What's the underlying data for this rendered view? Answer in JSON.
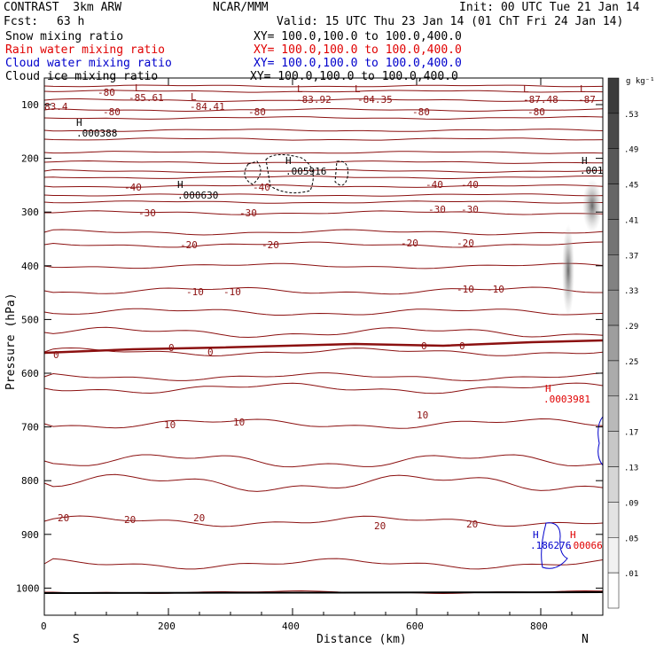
{
  "header": {
    "model": "CONTRAST  3km ARW",
    "center": "NCAR/MMM",
    "init": "Init: 00 UTC Tue 21 Jan 14",
    "fcst_label": "Fcst:",
    "fcst_value": "63 h",
    "valid": "Valid: 15 UTC Thu 23 Jan 14 (01 ChT Fri 24 Jan 14)",
    "fields": [
      {
        "name": "Snow mixing ratio",
        "xy": "XY= 100.0,100.0 to 100.0,400.0",
        "color": "#000000"
      },
      {
        "name": "Rain water mixing ratio",
        "xy": "XY= 100.0,100.0 to 100.0,400.0",
        "color": "#e00000"
      },
      {
        "name": "Cloud water mixing ratio",
        "xy": "XY= 100.0,100.0 to 100.0,400.0",
        "color": "#0000cc"
      },
      {
        "name": "Cloud ice mixing ratio",
        "xy": "XY= 100.0,100.0 to 100.0,400.0",
        "color": "#000000"
      }
    ]
  },
  "chart_data": {
    "type": "contour",
    "xlabel": "Distance (km)",
    "ylabel": "Pressure (hPa)",
    "xlim": [
      0,
      900
    ],
    "ylim": [
      1050,
      80
    ],
    "x_ticks": [
      "0",
      "200",
      "400",
      "600",
      "800"
    ],
    "x_tick_values": [
      0,
      200,
      400,
      600,
      800
    ],
    "y_ticks": [
      "100",
      "200",
      "300",
      "400",
      "500",
      "600",
      "700",
      "800",
      "900",
      "1000"
    ],
    "y_tick_values": [
      100,
      200,
      300,
      400,
      500,
      600,
      700,
      800,
      900,
      1000
    ],
    "endpoints": {
      "left": "S",
      "right": "N"
    },
    "colorbar": {
      "unit": "g kg⁻¹",
      "labels": [
        ".53",
        ".49",
        ".45",
        ".41",
        ".37",
        ".33",
        ".29",
        ".25",
        ".21",
        ".17",
        ".13",
        ".09",
        ".05",
        ".01"
      ]
    },
    "temperature_contours": [
      {
        "value": -80,
        "label": "-80"
      },
      {
        "value": -40,
        "label": "-40"
      },
      {
        "value": -30,
        "label": "-30"
      },
      {
        "value": -20,
        "label": "-20"
      },
      {
        "value": -10,
        "label": "-10"
      },
      {
        "value": 0,
        "label": "0"
      },
      {
        "value": 10,
        "label": "10"
      },
      {
        "value": 20,
        "label": "20"
      }
    ],
    "minima_labels": [
      "-85.61",
      "-84.41",
      "-83.92",
      "-84.35",
      "-87.48",
      "-87",
      "83.4"
    ],
    "maxima": [
      {
        "label": "H",
        "value": ".000388",
        "color": "#000000"
      },
      {
        "label": "H",
        "value": ".000630",
        "color": "#000000"
      },
      {
        "label": "H",
        "value": ".005916",
        "color": "#000000"
      },
      {
        "label": "H",
        "value": ".001",
        "color": "#000000"
      },
      {
        "label": "H",
        "value": ".0003981",
        "color": "#e00000"
      },
      {
        "label": "H",
        "value": ".186276",
        "color": "#0000cc"
      },
      {
        "label": "H",
        "value": ".00066",
        "color": "#e00000"
      }
    ],
    "colors": {
      "temperature": "#8b1010",
      "rain": "#e00000",
      "cloud_water": "#0000cc",
      "axis": "#000000"
    }
  }
}
